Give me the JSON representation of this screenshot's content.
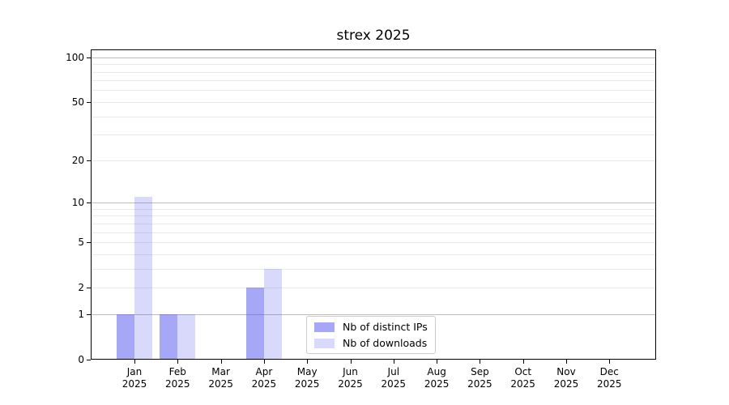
{
  "chart_data": {
    "type": "bar",
    "title": "strex 2025",
    "categories": [
      "Jan",
      "Feb",
      "Mar",
      "Apr",
      "May",
      "Jun",
      "Jul",
      "Aug",
      "Sep",
      "Oct",
      "Nov",
      "Dec"
    ],
    "x_year_suffix": "2025",
    "series": [
      {
        "name": "Nb of distinct IPs",
        "color": "rgba(80,80,240,0.50)",
        "values": [
          1,
          1,
          0,
          2,
          0,
          0,
          0,
          0,
          0,
          0,
          0,
          0
        ]
      },
      {
        "name": "Nb of downloads",
        "color": "rgba(80,80,240,0.22)",
        "values": [
          11,
          1,
          0,
          3,
          0,
          0,
          0,
          0,
          0,
          0,
          0,
          0
        ]
      }
    ],
    "yscale": "log1p",
    "ylim": [
      0,
      112.8
    ],
    "yticks": [
      0,
      1,
      2,
      5,
      10,
      20,
      50,
      100
    ],
    "grid": {
      "major": [
        1,
        10,
        100
      ],
      "minor": [
        2,
        3,
        4,
        5,
        6,
        7,
        8,
        9,
        20,
        30,
        40,
        50,
        60,
        70,
        80,
        90
      ],
      "major_color": "#bcbcbc",
      "minor_color": "#e9e9e9"
    },
    "legend": {
      "entries": [
        "Nb of distinct IPs",
        "Nb of downloads"
      ]
    }
  }
}
